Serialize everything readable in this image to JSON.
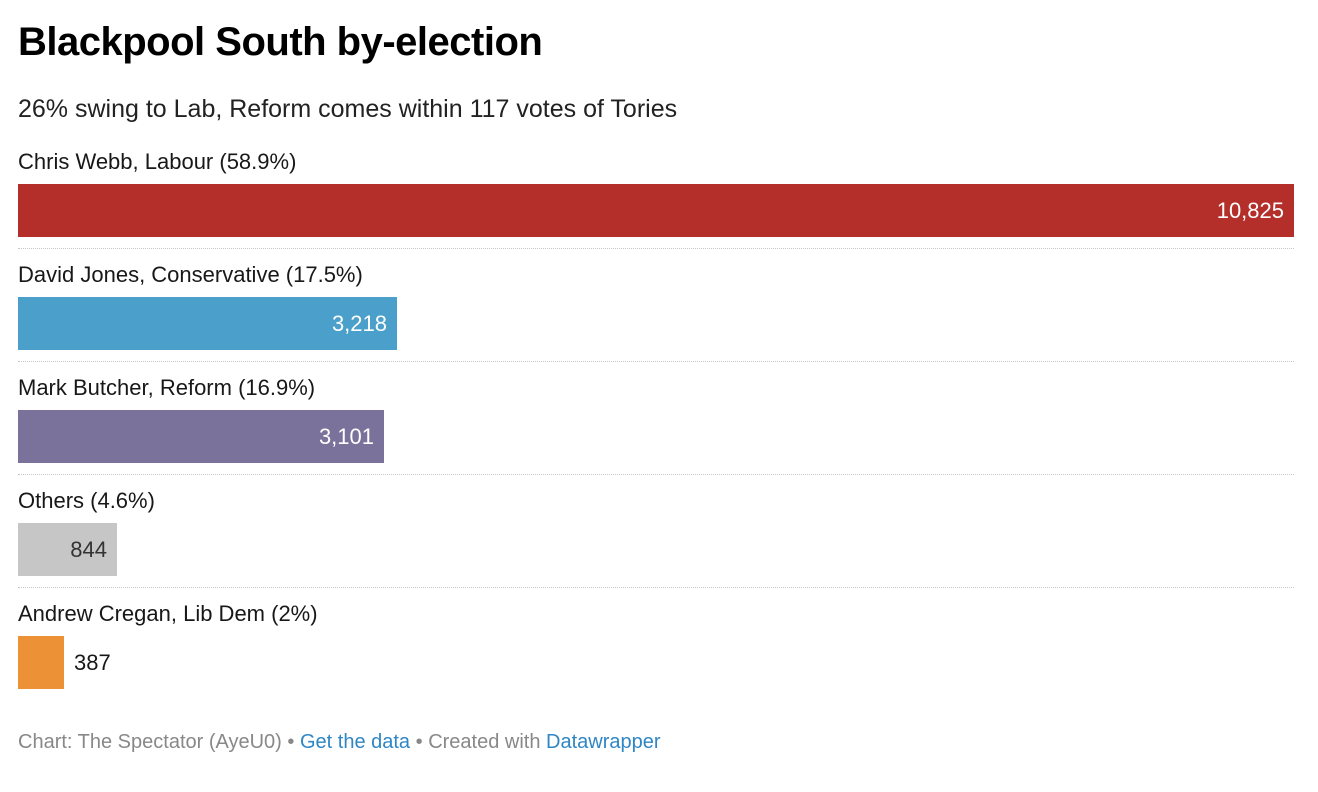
{
  "title": "Blackpool South by-election",
  "subtitle": "26% swing to Lab, Reform comes within 117 votes of Tories",
  "chart_data": {
    "type": "bar",
    "orientation": "horizontal",
    "title": "Blackpool South by-election",
    "subtitle": "26% swing to Lab, Reform comes within 117 votes of Tories",
    "xlim": [
      0,
      10825
    ],
    "grid": false,
    "categories": [
      "Chris Webb, Labour (58.9%)",
      "David Jones, Conservative (17.5%)",
      "Mark Butcher, Reform (16.9%)",
      "Others (4.6%)",
      "Andrew Cregan, Lib Dem (2%)"
    ],
    "values": [
      10825,
      3218,
      3101,
      844,
      387
    ],
    "value_labels": [
      "10,825",
      "3,218",
      "3,101",
      "844",
      "387"
    ],
    "colors": [
      "#b52f2a",
      "#4a9fcb",
      "#7b729c",
      "#c6c6c6",
      "#ec9136"
    ]
  },
  "footer": {
    "source": "Chart: The Spectator (AyeU0)",
    "separator": "•",
    "get_data": "Get the data",
    "created_with": "Created with",
    "tool": "Datawrapper"
  }
}
